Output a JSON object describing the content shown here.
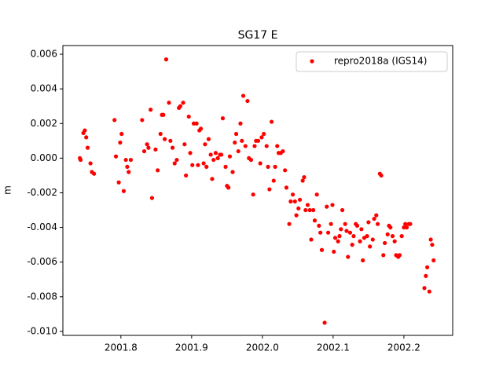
{
  "chart_data": {
    "type": "scatter",
    "title": "SG17 E",
    "y_label": "m",
    "legend": "upper right",
    "grid": false,
    "xlim": [
      2001.718,
      2002.269
    ],
    "ylim": [
      -0.01023,
      0.0065
    ],
    "xticks": [
      2001.8,
      2001.9,
      {
        "value": 2002,
        "label": "2002.0"
      },
      2002.1,
      2002.2
    ],
    "yticks": [
      {
        "value": -0.01,
        "label": "-0.010"
      },
      -0.008,
      -0.006,
      -0.004,
      -0.002,
      {
        "value": 0,
        "label": "0.000"
      },
      0.002,
      0.004,
      0.006
    ],
    "series": [
      {
        "name": "repro2018a (IGS14)",
        "color": "#ff0000",
        "x": [
          2001.742,
          2001.743,
          2001.747,
          2001.749,
          2001.751,
          2001.753,
          2001.757,
          2001.759,
          2001.762,
          2001.791,
          2001.793,
          2001.797,
          2001.799,
          2001.801,
          2001.804,
          2001.807,
          2001.809,
          2001.811,
          2001.814,
          2001.83,
          2001.833,
          2001.837,
          2001.839,
          2001.842,
          2001.844,
          2001.849,
          2001.852,
          2001.856,
          2001.858,
          2001.86,
          2001.862,
          2001.864,
          2001.868,
          2001.87,
          2001.873,
          2001.876,
          2001.879,
          2001.882,
          2001.884,
          2001.888,
          2001.89,
          2001.892,
          2001.896,
          2001.898,
          2001.901,
          2001.903,
          2001.907,
          2001.909,
          2001.911,
          2001.913,
          2001.917,
          2001.919,
          2001.921,
          2001.924,
          2001.927,
          2001.929,
          2001.931,
          2001.934,
          2001.937,
          2001.94,
          2001.942,
          2001.944,
          2001.948,
          2001.95,
          2001.952,
          2001.954,
          2001.958,
          2001.961,
          2001.963,
          2001.966,
          2001.969,
          2001.971,
          2001.973,
          2001.976,
          2001.979,
          2001.981,
          2001.984,
          2001.987,
          2001.989,
          2001.991,
          2001.994,
          2001.997,
          2001.999,
          2002.002,
          2002.006,
          2002.008,
          2002.01,
          2002.013,
          2002.016,
          2002.018,
          2002.021,
          2002.023,
          2002.026,
          2002.029,
          2002.032,
          2002.034,
          2002.038,
          2002.04,
          2002.043,
          2002.046,
          2002.048,
          2002.051,
          2002.053,
          2002.057,
          2002.059,
          2002.061,
          2002.064,
          2002.067,
          2002.069,
          2002.072,
          2002.074,
          2002.077,
          2002.08,
          2002.082,
          2002.084,
          2002.088,
          2002.091,
          2002.093,
          2002.097,
          2002.099,
          2002.101,
          2002.103,
          2002.107,
          2002.109,
          2002.111,
          2002.113,
          2002.117,
          2002.119,
          2002.121,
          2002.124,
          2002.127,
          2002.129,
          2002.132,
          2002.134,
          2002.138,
          2002.14,
          2002.142,
          2002.144,
          2002.148,
          2002.15,
          2002.152,
          2002.156,
          2002.158,
          2002.161,
          2002.163,
          2002.166,
          2002.168,
          2002.171,
          2002.173,
          2002.177,
          2002.179,
          2002.181,
          2002.184,
          2002.187,
          2002.189,
          2002.192,
          2002.194,
          2002.197,
          2002.2,
          2002.202,
          2002.204,
          2002.207,
          2002.209,
          2002.229,
          2002.231,
          2002.233,
          2002.236,
          2002.238,
          2002.24,
          2002.242
        ],
        "values": [
          0,
          -0.0001,
          0.00145,
          0.0016,
          0.0012,
          0.0006,
          -0.0003,
          -0.0008,
          -0.0009,
          0.0022,
          0.0001,
          -0.0014,
          0.0009,
          0.0014,
          -0.0019,
          -0.0001,
          -0.0005,
          -0.0008,
          -0.0001,
          0.0022,
          0.0004,
          0.0008,
          0.0006,
          0.0028,
          -0.0023,
          0.0005,
          -0.0007,
          0.0014,
          0.0025,
          0.0025,
          0.0011,
          0.0057,
          0.0032,
          0.001,
          0.0006,
          -0.0003,
          -0.0001,
          0.0029,
          0.003,
          0.0032,
          0.0008,
          -0.001,
          0.0024,
          0.0003,
          -0.0004,
          0.002,
          0.002,
          -0.0004,
          0.0016,
          0.0017,
          -0.0003,
          0.0008,
          -0.0005,
          0.0011,
          0.0002,
          -0.0012,
          -0.0001,
          0.0003,
          0,
          0.0002,
          0.0002,
          0.0023,
          -0.0005,
          -0.0016,
          -0.0017,
          0.0001,
          -0.0008,
          0.0009,
          0.0014,
          0.0004,
          0.002,
          0.001,
          0.0036,
          0.0007,
          0.0033,
          0,
          -0.0001,
          -0.0021,
          0.0007,
          0.001,
          0.001,
          -0.0003,
          0.0012,
          0.0014,
          0.0007,
          -0.0005,
          -0.0018,
          0.0021,
          -0.0013,
          -0.0005,
          0.0007,
          0.0003,
          0.0003,
          0.0004,
          -0.0007,
          -0.0017,
          -0.0038,
          -0.0025,
          -0.0021,
          -0.0025,
          -0.0033,
          -0.0029,
          -0.0024,
          -0.0013,
          -0.0011,
          -0.003,
          -0.0027,
          -0.003,
          -0.0047,
          -0.003,
          -0.0036,
          -0.0021,
          -0.0039,
          -0.0043,
          -0.0053,
          -0.0095,
          -0.0028,
          -0.0043,
          -0.0038,
          -0.0027,
          -0.0054,
          -0.0046,
          -0.0048,
          -0.0045,
          -0.0041,
          -0.003,
          -0.0038,
          -0.0042,
          -0.0057,
          -0.0043,
          -0.005,
          -0.0045,
          -0.0038,
          -0.0039,
          -0.0048,
          -0.0041,
          -0.0059,
          -0.0046,
          -0.0045,
          -0.0037,
          -0.0051,
          -0.0047,
          -0.0035,
          -0.0033,
          -0.0038,
          -0.0009,
          -0.001,
          -0.0056,
          -0.0049,
          -0.0044,
          -0.0039,
          -0.004,
          -0.0045,
          -0.0048,
          -0.0056,
          -0.0057,
          -0.0056,
          -0.0045,
          -0.004,
          -0.0038,
          -0.004,
          -0.0038,
          -0.0038,
          -0.0075,
          -0.0068,
          -0.0063,
          -0.0077,
          -0.0047,
          -0.005,
          -0.0059
        ]
      }
    ]
  }
}
